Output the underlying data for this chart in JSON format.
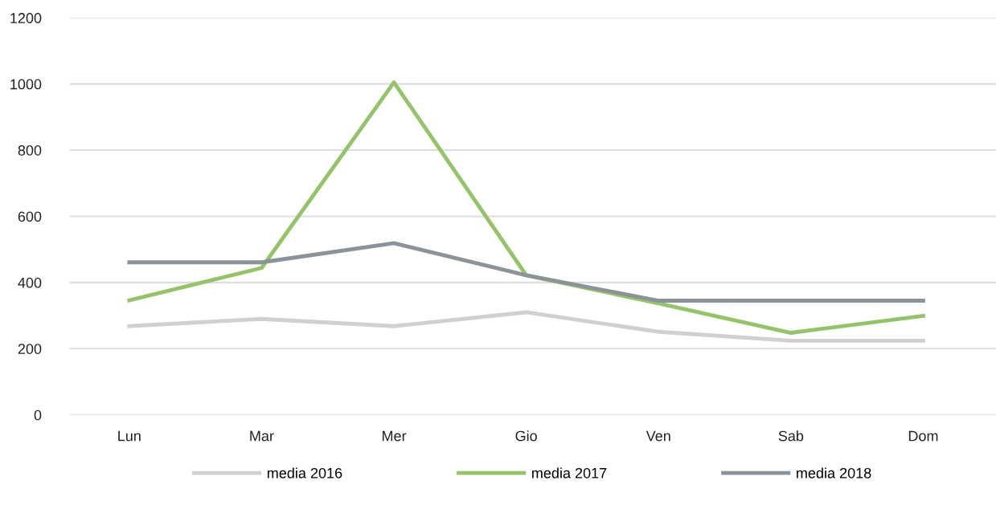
{
  "chart_data": {
    "type": "line",
    "categories": [
      "Lun",
      "Mar",
      "Mer",
      "Gio",
      "Ven",
      "Sab",
      "Dom"
    ],
    "series": [
      {
        "name": "media 2016",
        "color": "#d0d0d0",
        "values": [
          268,
          290,
          268,
          310,
          251,
          224,
          224
        ]
      },
      {
        "name": "media 2017",
        "color": "#94c36a",
        "values": [
          346,
          444,
          1005,
          422,
          337,
          248,
          299
        ]
      },
      {
        "name": "media 2018",
        "color": "#8c9398",
        "values": [
          461,
          461,
          519,
          422,
          345,
          345,
          345
        ]
      }
    ],
    "ylim": [
      0,
      1200
    ],
    "yticks": [
      0,
      200,
      400,
      600,
      800,
      1000,
      1200
    ],
    "grid": "y",
    "legend": "bottom",
    "marker": "none",
    "line_style": "solid"
  }
}
